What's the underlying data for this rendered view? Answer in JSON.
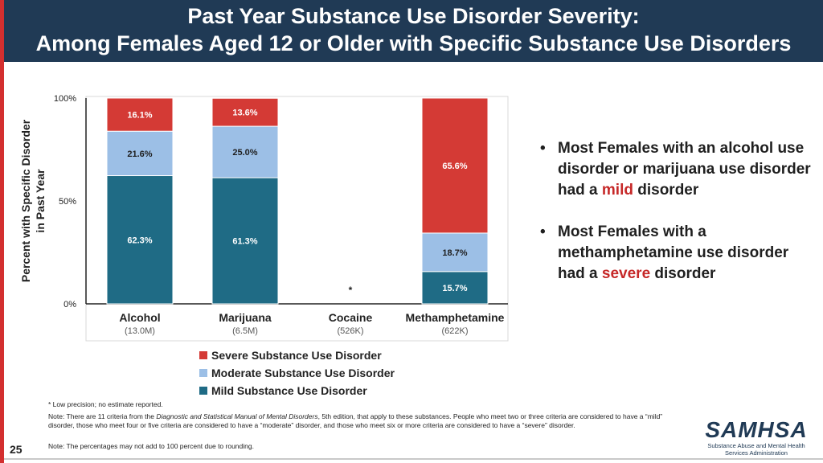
{
  "header": {
    "title_line1": "Past Year Substance Use Disorder Severity:",
    "title_line2": "Among Females Aged 12 or Older with Specific Substance Use Disorders"
  },
  "chart_data": {
    "type": "bar",
    "stacked": true,
    "ylabel_line1": "Percent with Specific Disorder",
    "ylabel_line2": "in Past Year",
    "ylim": [
      0,
      100
    ],
    "yticks": [
      "0%",
      "50%",
      "100%"
    ],
    "categories": [
      "Alcohol",
      "Marijuana",
      "Cocaine",
      "Methamphetamine"
    ],
    "sublabels": [
      "(13.0M)",
      "(6.5M)",
      "(526K)",
      "(622K)"
    ],
    "no_estimate_marker": [
      "",
      "",
      "*",
      ""
    ],
    "series": [
      {
        "name": "Mild Substance Use Disorder",
        "color": "#1f6b85",
        "values": [
          62.3,
          61.3,
          null,
          15.7
        ],
        "labels": [
          "62.3%",
          "61.3%",
          "",
          "15.7%"
        ]
      },
      {
        "name": "Moderate Substance Use Disorder",
        "color": "#9cbfe6",
        "values": [
          21.6,
          25.0,
          null,
          18.7
        ],
        "labels": [
          "21.6%",
          "25.0%",
          "",
          "18.7%"
        ]
      },
      {
        "name": "Severe Substance Use Disorder",
        "color": "#d43a35",
        "values": [
          16.1,
          13.6,
          null,
          65.6
        ],
        "labels": [
          "16.1%",
          "13.6%",
          "",
          "65.6%"
        ]
      }
    ],
    "legend_order": [
      "Severe Substance Use Disorder",
      "Moderate Substance Use Disorder",
      "Mild Substance Use Disorder"
    ],
    "legend_position": "bottom",
    "grid": false
  },
  "bullets": [
    {
      "prefix": "Most Females with an alcohol use disorder or marijuana use disorder had a ",
      "highlight": "mild",
      "suffix": " disorder"
    },
    {
      "prefix": "Most Females with a methamphetamine use disorder had a ",
      "highlight": "severe",
      "suffix": " disorder"
    }
  ],
  "footnotes": {
    "low_precision": "* Low precision; no estimate reported.",
    "note1_prefix": "Note: There are 11 criteria from the ",
    "note1_italic": "Diagnostic and Statistical Manual of Mental Disorders",
    "note1_suffix": ", 5th edition, that apply to these substances. People who meet two or three criteria are considered to have a “mild” disorder, those who meet four or five criteria are considered to have a “moderate” disorder, and those who meet six or more criteria are considered to have a “severe” disorder.",
    "note2": "Note: The percentages may not add to 100 percent due to rounding."
  },
  "page_number": "25",
  "logo": {
    "name": "SAMHSA",
    "subtitle_line1": "Substance Abuse and Mental Health",
    "subtitle_line2": "Services Administration"
  }
}
